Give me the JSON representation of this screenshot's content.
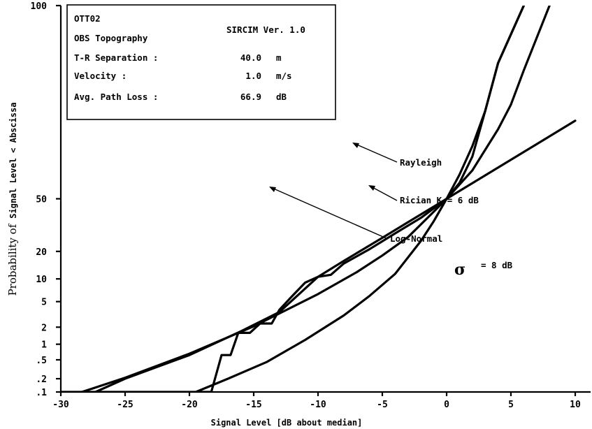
{
  "chart_data": {
    "type": "line",
    "xlabel": "Signal Level [dB about median]",
    "ylabel_parts": [
      "Probability of",
      "Signal Level < Abscissa"
    ],
    "xlim": [
      -30,
      10
    ],
    "ylim": [
      0.1,
      100
    ],
    "y_scale": "normal-probability",
    "x_ticks": [
      {
        "value": -30,
        "label": "-30"
      },
      {
        "value": -25,
        "label": "-25"
      },
      {
        "value": -20,
        "label": "-20"
      },
      {
        "value": -15,
        "label": "-15"
      },
      {
        "value": -10,
        "label": "-10"
      },
      {
        "value": -5,
        "label": "-5"
      },
      {
        "value": 0,
        "label": "0"
      },
      {
        "value": 5,
        "label": "5"
      },
      {
        "value": 10,
        "label": "10"
      }
    ],
    "y_ticks": [
      {
        "value": 100,
        "label": "100"
      },
      {
        "value": 50,
        "label": "50"
      },
      {
        "value": 20,
        "label": "20"
      },
      {
        "value": 10,
        "label": "10"
      },
      {
        "value": 5,
        "label": "5"
      },
      {
        "value": 2,
        "label": "2"
      },
      {
        "value": 1,
        "label": "1"
      },
      {
        "value": 0.5,
        "label": ".5"
      },
      {
        "value": 0.2,
        "label": ".2"
      },
      {
        "value": 0.1,
        "label": ".1"
      }
    ],
    "info_box": {
      "id": "OTT02",
      "topography": "OBS Topography",
      "version": "SIRCIM Ver. 1.0",
      "rows": [
        {
          "label": "T-R Separation :",
          "value": "40.0",
          "unit": "m"
        },
        {
          "label": "Velocity :",
          "value": "1.0",
          "unit": "m/s"
        },
        {
          "label": "Avg. Path Loss :",
          "value": "66.9",
          "unit": "dB"
        }
      ]
    },
    "annotations": {
      "rayleigh": "Rayleigh",
      "rician": "Rician K = 6 dB",
      "lognormal": "Log-Normal",
      "sigma_symbol": "σ",
      "sigma_value": "= 8 dB"
    },
    "series": [
      {
        "key": "rayleigh",
        "name": "Rayleigh",
        "points": [
          [
            -35,
            0.02
          ],
          [
            -25,
            0.21
          ],
          [
            -20,
            0.66
          ],
          [
            -15,
            2.07
          ],
          [
            -10,
            6.37
          ],
          [
            -7,
            12.0
          ],
          [
            -5,
            18.2
          ],
          [
            -3,
            27.0
          ],
          [
            -1,
            41.8
          ],
          [
            0,
            50.0
          ],
          [
            2,
            67.5
          ],
          [
            4,
            86.7
          ],
          [
            5,
            93.4
          ],
          [
            6,
            98.0
          ],
          [
            8,
            99.9
          ]
        ]
      },
      {
        "key": "rician",
        "name": "Rician K = 6 dB",
        "points": [
          [
            -19.5,
            0.1
          ],
          [
            -17,
            0.2
          ],
          [
            -14,
            0.45
          ],
          [
            -11,
            1.2
          ],
          [
            -8,
            3.1
          ],
          [
            -6,
            6.0
          ],
          [
            -4,
            11.5
          ],
          [
            -2,
            25.0
          ],
          [
            -1,
            36.0
          ],
          [
            0,
            50.0
          ],
          [
            1,
            65.0
          ],
          [
            2,
            80.0
          ],
          [
            3,
            92.0
          ],
          [
            4,
            98.5
          ],
          [
            6,
            99.9
          ]
        ]
      },
      {
        "key": "lognormal",
        "name": "Log-Normal",
        "points": [
          [
            -27.3,
            0.1
          ],
          [
            -25,
            0.2
          ],
          [
            -20,
            0.62
          ],
          [
            -16,
            1.7
          ],
          [
            -13,
            3.5
          ],
          [
            -10,
            10.6
          ],
          [
            -8,
            16.0
          ],
          [
            -5,
            26.6
          ],
          [
            -3,
            35.4
          ],
          [
            0,
            50.0
          ],
          [
            3,
            64.6
          ],
          [
            6,
            77.3
          ],
          [
            10,
            89.4
          ]
        ]
      },
      {
        "key": "measured",
        "name": "",
        "points": [
          [
            -30,
            0.1
          ],
          [
            -18.3,
            0.1
          ],
          [
            -17.5,
            0.62
          ],
          [
            -16.8,
            0.62
          ],
          [
            -16.2,
            1.6
          ],
          [
            -15.3,
            1.6
          ],
          [
            -14.5,
            2.3
          ],
          [
            -13.6,
            2.3
          ],
          [
            -13,
            3.8
          ],
          [
            -12,
            6.0
          ],
          [
            -11,
            9.0
          ],
          [
            -10,
            10.6
          ],
          [
            -9,
            11.2
          ],
          [
            -8,
            15.0
          ],
          [
            -6,
            21.0
          ],
          [
            -4,
            29.0
          ],
          [
            -2,
            38.0
          ],
          [
            0,
            50.0
          ],
          [
            1,
            60.0
          ],
          [
            2,
            75.0
          ],
          [
            3,
            92.0
          ],
          [
            4,
            98.5
          ],
          [
            6,
            99.9
          ]
        ]
      }
    ]
  }
}
